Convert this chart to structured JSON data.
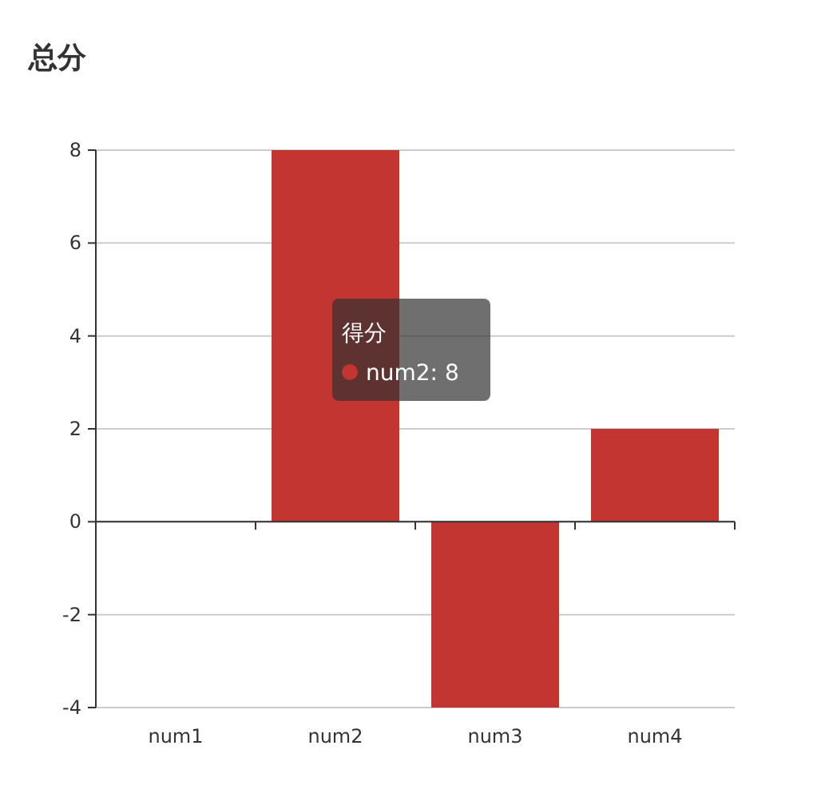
{
  "chart_data": {
    "type": "bar",
    "title": "总分",
    "categories": [
      "num1",
      "num2",
      "num3",
      "num4"
    ],
    "series": [
      {
        "name": "得分",
        "color": "#c23531",
        "values": [
          0,
          8,
          -4,
          2
        ]
      }
    ],
    "ylim": [
      -4,
      8
    ],
    "yticks": [
      -4,
      -2,
      0,
      2,
      4,
      6,
      8
    ],
    "grid": "y",
    "annotations": [
      "num2: 8"
    ]
  }
}
